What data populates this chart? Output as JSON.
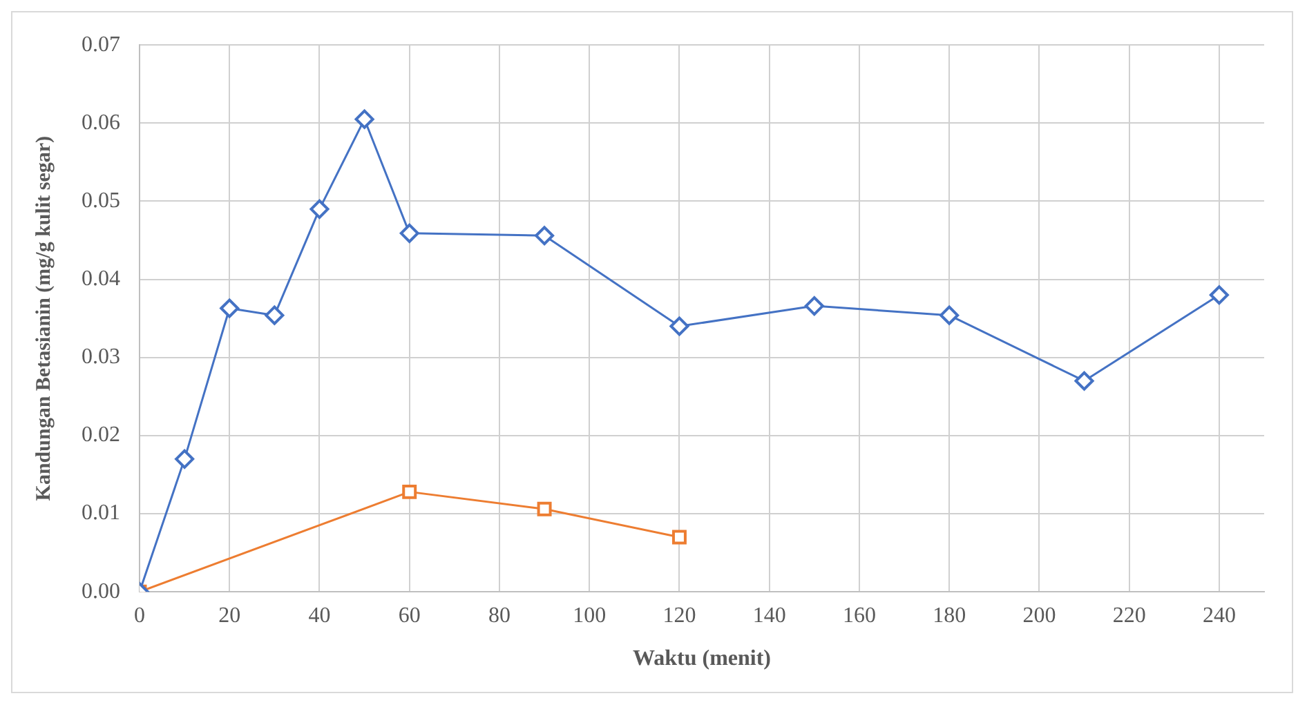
{
  "chart_data": {
    "type": "line",
    "xlabel": "Waktu (menit)",
    "ylabel": "Kandungan Betasianin (mg/g kulit segar)",
    "xlim": [
      0,
      250
    ],
    "xticks": [
      0,
      20,
      40,
      60,
      80,
      100,
      120,
      140,
      160,
      180,
      200,
      220,
      240
    ],
    "ylim": [
      0,
      0.07
    ],
    "yticks": [
      {
        "value": 0,
        "label": "0.00"
      },
      {
        "value": 0.01,
        "label": "0.01"
      },
      {
        "value": 0.02,
        "label": "0.02"
      },
      {
        "value": 0.03,
        "label": "0.03"
      },
      {
        "value": 0.04,
        "label": "0.04"
      },
      {
        "value": 0.05,
        "label": "0.05"
      },
      {
        "value": 0.06,
        "label": "0.06"
      },
      {
        "value": 0.07,
        "label": "0.07"
      }
    ],
    "grid": true,
    "legend": false,
    "series": [
      {
        "color": "#4472c4",
        "marker": "diamond",
        "x": [
          0,
          10,
          20,
          30,
          40,
          50,
          60,
          90,
          120,
          150,
          180,
          210,
          240
        ],
        "values": [
          0,
          0.017,
          0.0363,
          0.0354,
          0.049,
          0.0605,
          0.0459,
          0.0456,
          0.034,
          0.0366,
          0.0354,
          0.027,
          0.038
        ]
      },
      {
        "color": "#ed7d31",
        "marker": "square",
        "x": [
          0,
          60,
          90,
          120
        ],
        "values": [
          0,
          0.0128,
          0.0106,
          0.007
        ]
      }
    ]
  }
}
